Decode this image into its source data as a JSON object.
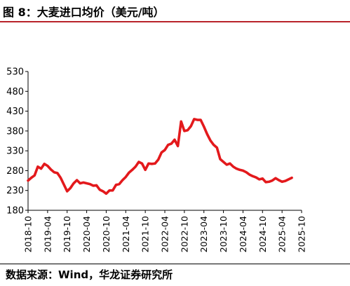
{
  "header": {
    "title": "图 8：大麦进口均价（美元/吨）"
  },
  "footer": {
    "source": "数据来源：Wind，华龙证券研究所"
  },
  "chart_data": {
    "type": "line",
    "title": "图 8：大麦进口均价（美元/吨）",
    "xlabel": "",
    "ylabel": "",
    "ylim": [
      180,
      530
    ],
    "yticks": [
      180,
      230,
      280,
      330,
      380,
      430,
      480,
      530
    ],
    "xticks": [
      "2018-10",
      "2019-04",
      "2019-10",
      "2020-04",
      "2020-10",
      "2021-04",
      "2021-10",
      "2022-04",
      "2022-10",
      "2023-04",
      "2023-10",
      "2024-04",
      "2024-10",
      "2025-04",
      "2025-10"
    ],
    "grid": false,
    "legend": "none",
    "color": "#e3191c",
    "series": [
      {
        "x": [
          "2018-10",
          "2018-11",
          "2018-12",
          "2019-01",
          "2019-02",
          "2019-03",
          "2019-04",
          "2019-05",
          "2019-06",
          "2019-07",
          "2019-08",
          "2019-09",
          "2019-10",
          "2019-11",
          "2019-12",
          "2020-01",
          "2020-02",
          "2020-03",
          "2020-04",
          "2020-05",
          "2020-06",
          "2020-07",
          "2020-08",
          "2020-09",
          "2020-10",
          "2020-11",
          "2020-12",
          "2021-01",
          "2021-02",
          "2021-03",
          "2021-04",
          "2021-05",
          "2021-06",
          "2021-07",
          "2021-08",
          "2021-09",
          "2021-10",
          "2021-11",
          "2021-12",
          "2022-01",
          "2022-02",
          "2022-03",
          "2022-04",
          "2022-05",
          "2022-06",
          "2022-07",
          "2022-08",
          "2022-09",
          "2022-10",
          "2022-11",
          "2022-12",
          "2023-01",
          "2023-02",
          "2023-03",
          "2023-04",
          "2023-05",
          "2023-06",
          "2023-07",
          "2023-08",
          "2023-09",
          "2023-10",
          "2023-11",
          "2023-12",
          "2024-01",
          "2024-02",
          "2024-03",
          "2024-04",
          "2024-05",
          "2024-06",
          "2024-07",
          "2024-08",
          "2024-09",
          "2024-10",
          "2024-11",
          "2024-12",
          "2025-01",
          "2025-02",
          "2025-03",
          "2025-04",
          "2025-05",
          "2025-06",
          "2025-07"
        ],
        "values": [
          255,
          262,
          268,
          290,
          285,
          297,
          292,
          283,
          276,
          274,
          262,
          245,
          228,
          236,
          248,
          256,
          248,
          250,
          248,
          246,
          242,
          243,
          232,
          228,
          222,
          230,
          230,
          244,
          246,
          256,
          264,
          275,
          282,
          290,
          302,
          298,
          282,
          298,
          297,
          298,
          308,
          326,
          332,
          345,
          348,
          358,
          342,
          404,
          380,
          382,
          392,
          410,
          408,
          408,
          391,
          372,
          356,
          345,
          338,
          309,
          302,
          295,
          298,
          290,
          285,
          282,
          280,
          276,
          270,
          266,
          263,
          258,
          260,
          251,
          252,
          255,
          261,
          256,
          252,
          254,
          258,
          262
        ]
      }
    ]
  }
}
